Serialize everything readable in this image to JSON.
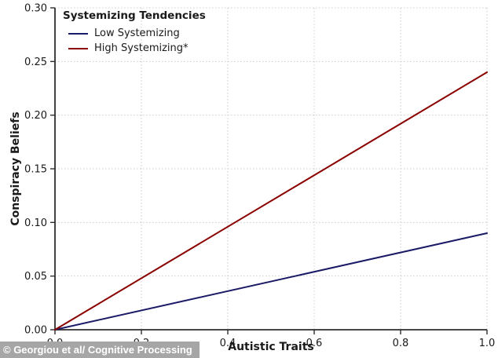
{
  "chart_data": {
    "type": "line",
    "title": "",
    "xlabel": "Autistic Traits",
    "ylabel": "Conspiracy Beliefs",
    "xlim": [
      0.0,
      1.0
    ],
    "ylim": [
      0.0,
      0.3
    ],
    "xticks": [
      0.0,
      0.2,
      0.4,
      0.6,
      0.8,
      1.0
    ],
    "xtick_labels": [
      "0.0",
      "0.2",
      "0.4",
      "0.6",
      "0.8",
      "1.0"
    ],
    "yticks": [
      0.0,
      0.05,
      0.1,
      0.15,
      0.2,
      0.25,
      0.3
    ],
    "ytick_labels": [
      "0.00",
      "0.05",
      "0.10",
      "0.15",
      "0.20",
      "0.25",
      "0.30"
    ],
    "grid": "dotted",
    "legend": {
      "title": "Systemizing Tendencies",
      "position": "upper-left"
    },
    "series": [
      {
        "name": "Low Systemizing",
        "color": "#1a1a66",
        "x": [
          0.0,
          1.0
        ],
        "y": [
          0.0,
          0.09
        ]
      },
      {
        "name": "High Systemizing*",
        "color": "#8b0000",
        "x": [
          0.0,
          1.0
        ],
        "y": [
          0.0,
          0.24
        ]
      }
    ],
    "watermark": "© Georgiou et al/ Cognitive Processing"
  },
  "colors": {
    "grid": "#cccccc",
    "spine": "#2e2e2e",
    "tick_label": "#1a1a1a",
    "watermark_bg": "#a6a6a6",
    "watermark_text": "#ffffff",
    "background": "#ffffff"
  }
}
